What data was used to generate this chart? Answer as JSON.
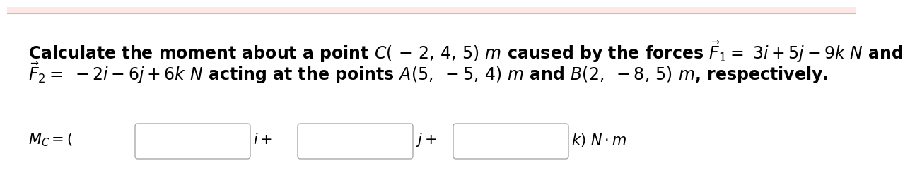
{
  "bg_color": "#ffffff",
  "top_bar_color": "#fde8e8",
  "top_line_color": "#c0c0c0",
  "line1": "Calculate the moment about a point $C(\\boldsymbol{-}\\,2, 4, 5)$ $m$ caused by the forces $\\vec{F}_1 = \\ 3i + 5j - 9k\\ N$ and",
  "line2": "$\\vec{F}_2 = \\ -2i - 6j + 6k\\ N$ acting at the points $A(5,\\,-5, 4)$ $m$ and $B(2,\\,-8, 5)$ $m$, respectively.",
  "font_size_text": 17,
  "font_size_bottom": 15,
  "text_color": "#000000",
  "box_edge_color": "#aaaaaa",
  "box_face_color": "#ffffff",
  "suffixes": [
    "$i +$",
    "$j +$",
    "$k)\\ N \\cdot m$"
  ],
  "mc_label": "$M_C = ($"
}
